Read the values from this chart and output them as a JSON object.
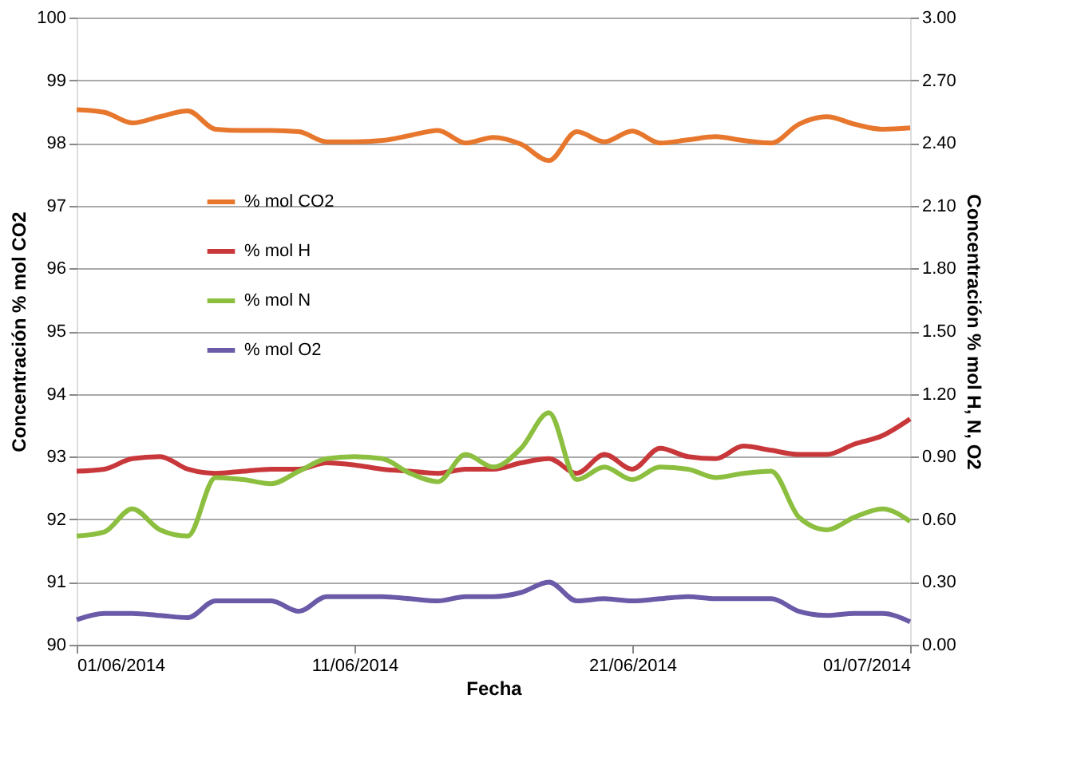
{
  "chart_data": {
    "type": "line",
    "xlabel": "Fecha",
    "ylabel": "Concentración % mol CO2",
    "y2label": "Concentración % mol H, N, O2",
    "x": [
      "2014-06-01",
      "2014-06-02",
      "2014-06-03",
      "2014-06-04",
      "2014-06-05",
      "2014-06-06",
      "2014-06-07",
      "2014-06-08",
      "2014-06-09",
      "2014-06-10",
      "2014-06-11",
      "2014-06-12",
      "2014-06-13",
      "2014-06-14",
      "2014-06-15",
      "2014-06-16",
      "2014-06-17",
      "2014-06-18",
      "2014-06-19",
      "2014-06-20",
      "2014-06-21",
      "2014-06-22",
      "2014-06-23",
      "2014-06-24",
      "2014-06-25",
      "2014-06-26",
      "2014-06-27",
      "2014-06-28",
      "2014-06-29",
      "2014-06-30",
      "2014-07-01"
    ],
    "series": [
      {
        "name": "% mol CO2",
        "color": "#e8772e",
        "values": [
          98.53,
          98.49,
          98.32,
          98.42,
          98.51,
          98.22,
          98.2,
          98.2,
          98.18,
          98.02,
          98.02,
          98.04,
          98.12,
          98.2,
          98.0,
          98.09,
          97.98,
          97.72,
          98.18,
          98.02,
          98.19,
          98.0,
          98.05,
          98.1,
          98.04,
          98.0,
          98.3,
          98.42,
          98.3,
          98.22,
          98.24
        ]
      },
      {
        "name": "% mol H",
        "color": "#c8373a",
        "axis": "y2",
        "values": [
          0.83,
          0.84,
          0.89,
          0.9,
          0.84,
          0.82,
          0.83,
          0.84,
          0.84,
          0.87,
          0.86,
          0.84,
          0.83,
          0.82,
          0.84,
          0.84,
          0.87,
          0.89,
          0.82,
          0.91,
          0.84,
          0.94,
          0.9,
          0.89,
          0.95,
          0.93,
          0.91,
          0.91,
          0.96,
          1.0,
          1.08
        ]
      },
      {
        "name": "% mol N",
        "color": "#8cbf3f",
        "axis": "y2",
        "values": [
          0.52,
          0.54,
          0.65,
          0.55,
          0.52,
          0.8,
          0.79,
          0.77,
          0.83,
          0.89,
          0.9,
          0.89,
          0.82,
          0.78,
          0.91,
          0.85,
          0.94,
          1.11,
          0.79,
          0.85,
          0.79,
          0.85,
          0.84,
          0.8,
          0.82,
          0.83,
          0.61,
          0.55,
          0.61,
          0.65,
          0.59
        ]
      },
      {
        "name": "% mol O2",
        "color": "#6a5aa8",
        "axis": "y2",
        "values": [
          0.12,
          0.15,
          0.15,
          0.14,
          0.13,
          0.21,
          0.21,
          0.21,
          0.16,
          0.23,
          0.23,
          0.23,
          0.22,
          0.21,
          0.23,
          0.23,
          0.25,
          0.3,
          0.21,
          0.22,
          0.21,
          0.22,
          0.23,
          0.22,
          0.22,
          0.22,
          0.16,
          0.14,
          0.15,
          0.15,
          0.11
        ]
      }
    ],
    "xlim": [
      "2014-06-01",
      "2014-07-01"
    ],
    "xticks": [
      {
        "value": "2014-06-01",
        "label": "01/06/2014"
      },
      {
        "value": "2014-06-11",
        "label": "11/06/2014"
      },
      {
        "value": "2014-06-21",
        "label": "21/06/2014"
      },
      {
        "value": "2014-07-01",
        "label": "01/07/2014"
      }
    ],
    "ylim": [
      90,
      100
    ],
    "yticks": [
      90,
      91,
      92,
      93,
      94,
      95,
      96,
      97,
      98,
      99,
      100
    ],
    "y2lim": [
      0,
      3
    ],
    "y2ticks": [
      {
        "value": 0,
        "label": "0.00"
      },
      {
        "value": 0.3,
        "label": "0.30"
      },
      {
        "value": 0.6,
        "label": "0.60"
      },
      {
        "value": 0.9,
        "label": "0.90"
      },
      {
        "value": 1.2,
        "label": "1.20"
      },
      {
        "value": 1.5,
        "label": "1.50"
      },
      {
        "value": 1.8,
        "label": "1.80"
      },
      {
        "value": 2.1,
        "label": "2.10"
      },
      {
        "value": 2.4,
        "label": "2.40"
      },
      {
        "value": 2.7,
        "label": "2.70"
      },
      {
        "value": 3,
        "label": "3.00"
      }
    ],
    "grid": "y",
    "legend": "left",
    "marker": "none",
    "line_style": "solid"
  }
}
